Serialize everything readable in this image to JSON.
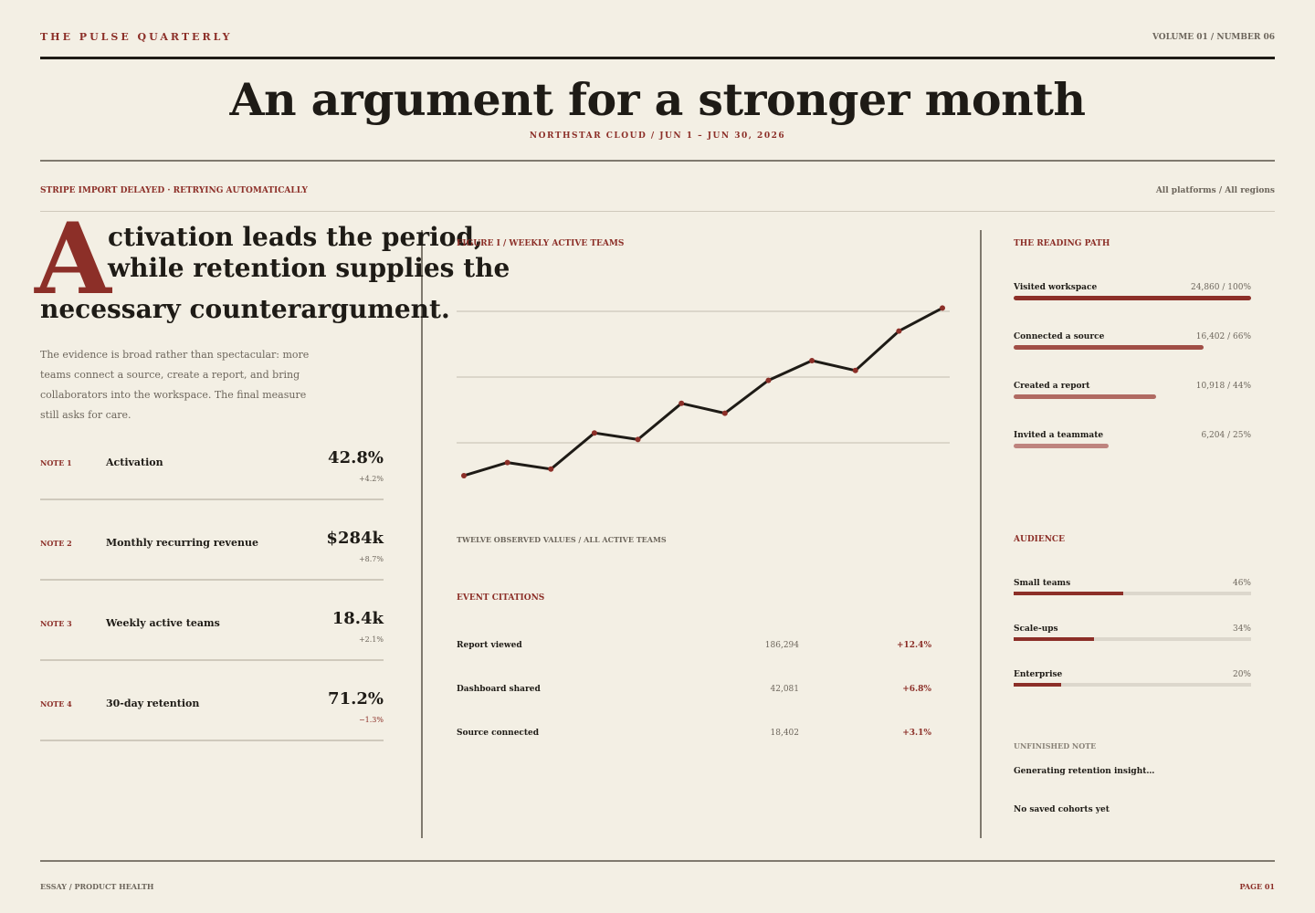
{
  "masthead": {
    "brand": "THE PULSE QUARTERLY",
    "volume": "VOLUME 01 / NUMBER 06",
    "headline": "An argument for a stronger month",
    "subline": "NORTHSTAR CLOUD / JUN 1 – JUN 30, 2026"
  },
  "statusbar": {
    "status": "STRIPE IMPORT DELAYED · RETRYING AUTOMATICALLY",
    "filters": "All platforms / All regions"
  },
  "essay": {
    "dropcap": "A",
    "lede_line1": "ctivation leads the period,",
    "lede_line2": "while retention supplies the",
    "lede_line3": "necessary counterargument.",
    "body": "The evidence is broad rather than spectacular: more teams connect a source, create a report, and bring collaborators into the workspace. The final measure still asks for care."
  },
  "notes": [
    {
      "tag": "NOTE 1",
      "label": "Activation",
      "value": "42.8%",
      "delta": "+4.2%"
    },
    {
      "tag": "NOTE 2",
      "label": "Monthly recurring revenue",
      "value": "$284k",
      "delta": "+8.7%"
    },
    {
      "tag": "NOTE 3",
      "label": "Weekly active teams",
      "value": "18.4k",
      "delta": "+2.1%"
    },
    {
      "tag": "NOTE 4",
      "label": "30-day retention",
      "value": "71.2%",
      "delta": "−1.3%"
    }
  ],
  "figure": {
    "title": "FIGURE I / WEEKLY ACTIVE TEAMS",
    "caption": "TWELVE OBSERVED VALUES / ALL ACTIVE TEAMS"
  },
  "chart_data": {
    "type": "line",
    "title": "FIGURE I / WEEKLY ACTIVE TEAMS",
    "x": [
      1,
      2,
      3,
      4,
      5,
      6,
      7,
      8,
      9,
      10,
      11,
      12
    ],
    "series": [
      {
        "values": [
          10,
          14,
          12,
          23,
          21,
          32,
          29,
          39,
          45,
          42,
          54,
          61
        ]
      }
    ],
    "ylim": [
      0,
      70
    ],
    "grid": true,
    "line_color": "#1e1b16",
    "marker_color": "#8c2f28"
  },
  "events": {
    "title": "EVENT CITATIONS",
    "rows": [
      {
        "label": "Report viewed",
        "count": "186,294",
        "change": "+12.4%"
      },
      {
        "label": "Dashboard shared",
        "count": "42,081",
        "change": "+6.8%"
      },
      {
        "label": "Source connected",
        "count": "18,402",
        "change": "+3.1%"
      }
    ]
  },
  "reading_path": {
    "title": "THE READING PATH",
    "steps": [
      {
        "label": "Visited workspace",
        "value": "24,860 / 100%",
        "fraction": 1.0,
        "color": "#8c2f28"
      },
      {
        "label": "Connected a source",
        "value": "16,402 / 66%",
        "fraction": 0.8,
        "color": "#a04e46"
      },
      {
        "label": "Created a report",
        "value": "10,918 / 44%",
        "fraction": 0.6,
        "color": "#b06a62"
      },
      {
        "label": "Invited a teammate",
        "value": "6,204 / 25%",
        "fraction": 0.4,
        "color": "#be847e"
      }
    ]
  },
  "audience": {
    "title": "AUDIENCE",
    "segments": [
      {
        "label": "Small teams",
        "value": "46%",
        "fraction": 0.46
      },
      {
        "label": "Scale-ups",
        "value": "34%",
        "fraction": 0.34
      },
      {
        "label": "Enterprise",
        "value": "20%",
        "fraction": 0.2
      }
    ]
  },
  "unfinished": {
    "title": "UNFINISHED NOTE",
    "text": "Generating retention insight…",
    "empty": "No saved cohorts yet"
  },
  "footer": {
    "left": "ESSAY / PRODUCT HEALTH",
    "right": "PAGE 01"
  }
}
